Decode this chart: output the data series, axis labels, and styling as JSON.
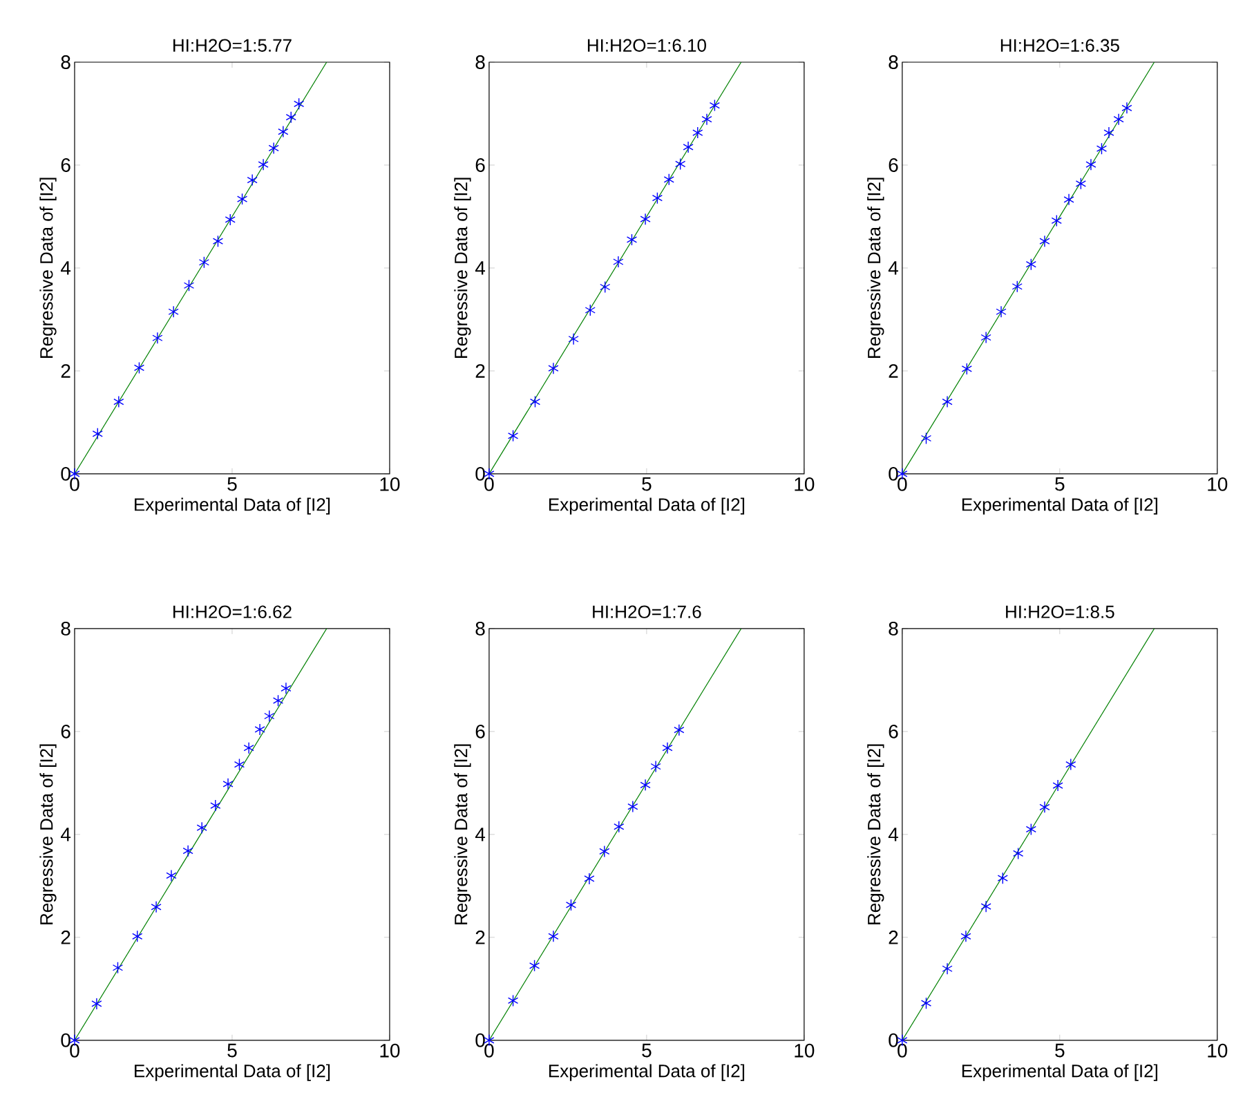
{
  "chart_data": [
    {
      "type": "scatter",
      "title": "HI:H2O=1:5.77",
      "xlabel": "Experimental Data of [I2]",
      "ylabel": "Regressive Data of [I2]",
      "xlim": [
        0,
        10
      ],
      "ylim": [
        0,
        8
      ],
      "xticks": [
        0,
        5,
        10
      ],
      "yticks": [
        0,
        2,
        4,
        6,
        8
      ],
      "series": [
        {
          "marker": "cross",
          "color": "#0000ff",
          "x": [
            0,
            0.73,
            1.4,
            2.05,
            2.63,
            3.14,
            3.63,
            4.11,
            4.55,
            4.94,
            5.32,
            5.64,
            5.99,
            6.32,
            6.62,
            6.87,
            7.12
          ],
          "values": [
            0,
            0.78,
            1.4,
            2.06,
            2.64,
            3.15,
            3.66,
            4.11,
            4.52,
            4.94,
            5.34,
            5.71,
            6.01,
            6.33,
            6.65,
            6.93,
            7.19
          ]
        },
        {
          "type": "line",
          "color": "#008000",
          "x": [
            0,
            8
          ],
          "values": [
            0,
            8
          ]
        }
      ]
    },
    {
      "type": "scatter",
      "title": "HI:H2O=1:6.10",
      "xlabel": "Experimental Data of [I2]",
      "ylabel": "Regressive Data of [I2]",
      "xlim": [
        0,
        10
      ],
      "ylim": [
        0,
        8
      ],
      "xticks": [
        0,
        5,
        10
      ],
      "yticks": [
        0,
        2,
        4,
        6,
        8
      ],
      "series": [
        {
          "marker": "cross",
          "color": "#0000ff",
          "x": [
            0,
            0.76,
            1.46,
            2.04,
            2.68,
            3.21,
            3.68,
            4.1,
            4.53,
            4.96,
            5.34,
            5.71,
            6.07,
            6.32,
            6.62,
            6.91,
            7.16
          ],
          "values": [
            0,
            0.74,
            1.4,
            2.05,
            2.62,
            3.18,
            3.63,
            4.12,
            4.55,
            4.95,
            5.36,
            5.72,
            6.02,
            6.35,
            6.63,
            6.89,
            7.16
          ]
        },
        {
          "type": "line",
          "color": "#008000",
          "x": [
            0,
            8
          ],
          "values": [
            0,
            8
          ]
        }
      ]
    },
    {
      "type": "scatter",
      "title": "HI:H2O=1:6.35",
      "xlabel": "Experimental Data of [I2]",
      "ylabel": "Regressive Data of [I2]",
      "xlim": [
        0,
        10
      ],
      "ylim": [
        0,
        8
      ],
      "xticks": [
        0,
        5,
        10
      ],
      "yticks": [
        0,
        2,
        4,
        6,
        8
      ],
      "series": [
        {
          "marker": "cross",
          "color": "#0000ff",
          "x": [
            0,
            0.76,
            1.43,
            2.05,
            2.66,
            3.14,
            3.65,
            4.09,
            4.52,
            4.9,
            5.29,
            5.67,
            5.99,
            6.33,
            6.56,
            6.87,
            7.13
          ],
          "values": [
            0,
            0.69,
            1.4,
            2.04,
            2.65,
            3.15,
            3.64,
            4.07,
            4.52,
            4.92,
            5.33,
            5.64,
            6.01,
            6.32,
            6.63,
            6.89,
            7.11
          ]
        },
        {
          "type": "line",
          "color": "#008000",
          "x": [
            0,
            8
          ],
          "values": [
            0,
            8
          ]
        }
      ]
    },
    {
      "type": "scatter",
      "title": "HI:H2O=1:6.62",
      "xlabel": "Experimental Data of [I2]",
      "ylabel": "Regressive Data of [I2]",
      "xlim": [
        0,
        10
      ],
      "ylim": [
        0,
        8
      ],
      "xticks": [
        0,
        5,
        10
      ],
      "yticks": [
        0,
        2,
        4,
        6,
        8
      ],
      "series": [
        {
          "marker": "cross",
          "color": "#0000ff",
          "x": [
            0,
            0.7,
            1.37,
            1.99,
            2.59,
            3.07,
            3.6,
            4.04,
            4.47,
            4.87,
            5.23,
            5.53,
            5.88,
            6.18,
            6.46,
            6.71
          ],
          "values": [
            0,
            0.71,
            1.41,
            2.02,
            2.59,
            3.2,
            3.68,
            4.13,
            4.56,
            4.98,
            5.36,
            5.68,
            6.04,
            6.3,
            6.6,
            6.84
          ]
        },
        {
          "type": "line",
          "color": "#008000",
          "x": [
            0,
            8
          ],
          "values": [
            0,
            8
          ]
        }
      ]
    },
    {
      "type": "scatter",
      "title": "HI:H2O=1:7.6",
      "xlabel": "Experimental Data of [I2]",
      "ylabel": "Regressive Data of [I2]",
      "xlim": [
        0,
        10
      ],
      "ylim": [
        0,
        8
      ],
      "xticks": [
        0,
        5,
        10
      ],
      "yticks": [
        0,
        2,
        4,
        6,
        8
      ],
      "series": [
        {
          "marker": "cross",
          "color": "#0000ff",
          "x": [
            0,
            0.76,
            1.44,
            2.04,
            2.6,
            3.18,
            3.66,
            4.12,
            4.56,
            4.96,
            5.29,
            5.66,
            6.03
          ],
          "values": [
            0,
            0.77,
            1.45,
            2.02,
            2.63,
            3.14,
            3.67,
            4.15,
            4.54,
            4.96,
            5.32,
            5.68,
            6.03
          ]
        },
        {
          "type": "line",
          "color": "#008000",
          "x": [
            0,
            8
          ],
          "values": [
            0,
            8
          ]
        }
      ]
    },
    {
      "type": "scatter",
      "title": "HI:H2O=1:8.5",
      "xlabel": "Experimental Data of [I2]",
      "ylabel": "Regressive Data of [I2]",
      "xlim": [
        0,
        10
      ],
      "ylim": [
        0,
        8
      ],
      "xticks": [
        0,
        5,
        10
      ],
      "yticks": [
        0,
        2,
        4,
        6,
        8
      ],
      "series": [
        {
          "marker": "cross",
          "color": "#0000ff",
          "x": [
            0,
            0.76,
            1.43,
            2.02,
            2.66,
            3.19,
            3.68,
            4.09,
            4.52,
            4.94,
            5.35
          ],
          "values": [
            0,
            0.72,
            1.39,
            2.02,
            2.6,
            3.15,
            3.63,
            4.1,
            4.53,
            4.95,
            5.36
          ]
        },
        {
          "type": "line",
          "color": "#008000",
          "x": [
            0,
            8
          ],
          "values": [
            0,
            8
          ]
        }
      ]
    }
  ]
}
